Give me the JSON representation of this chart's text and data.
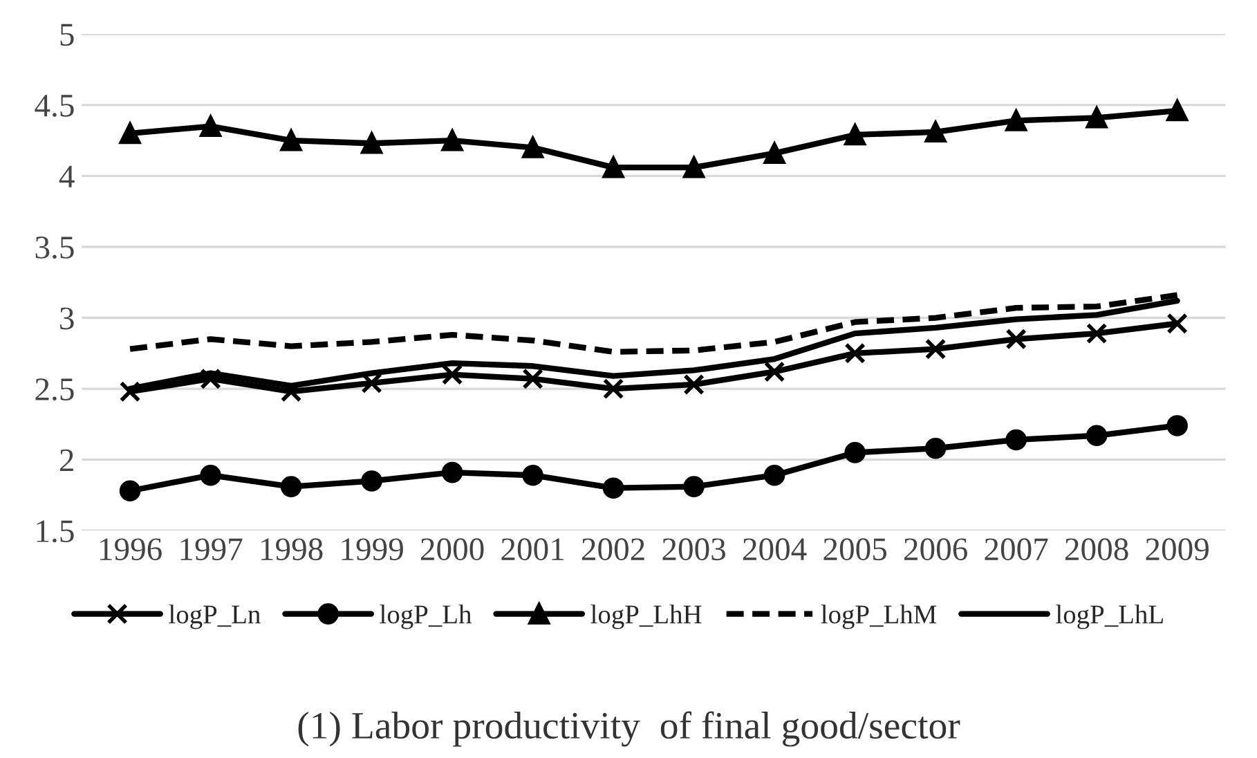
{
  "chart_data": {
    "type": "line",
    "title": "(1) Labor productivity  of final good/sector",
    "categories": [
      "1996",
      "1997",
      "1998",
      "1999",
      "2000",
      "2001",
      "2002",
      "2003",
      "2004",
      "2005",
      "2006",
      "2007",
      "2008",
      "2009"
    ],
    "series": [
      {
        "name": "logP_Ln",
        "color": "#000000",
        "marker": "cross",
        "line_style": "solid",
        "values": [
          2.48,
          2.57,
          2.48,
          2.54,
          2.6,
          2.57,
          2.5,
          2.53,
          2.62,
          2.75,
          2.78,
          2.85,
          2.89,
          2.96
        ]
      },
      {
        "name": "logP_Lh",
        "color": "#000000",
        "marker": "circle",
        "line_style": "solid",
        "values": [
          1.78,
          1.89,
          1.81,
          1.85,
          1.91,
          1.89,
          1.8,
          1.81,
          1.89,
          2.05,
          2.08,
          2.14,
          2.17,
          2.24
        ]
      },
      {
        "name": "logP_LhH",
        "color": "#000000",
        "marker": "triangle",
        "line_style": "solid",
        "values": [
          4.3,
          4.35,
          4.25,
          4.23,
          4.25,
          4.2,
          4.06,
          4.06,
          4.16,
          4.29,
          4.31,
          4.39,
          4.41,
          4.46
        ]
      },
      {
        "name": "logP_LhM",
        "color": "#000000",
        "marker": "none",
        "line_style": "dashed",
        "values": [
          2.78,
          2.85,
          2.8,
          2.83,
          2.88,
          2.84,
          2.76,
          2.77,
          2.83,
          2.97,
          3.0,
          3.07,
          3.08,
          3.16
        ]
      },
      {
        "name": "logP_LhL",
        "color": "#000000",
        "marker": "none",
        "line_style": "solid",
        "values": [
          2.5,
          2.61,
          2.52,
          2.61,
          2.68,
          2.66,
          2.59,
          2.63,
          2.71,
          2.89,
          2.93,
          2.99,
          3.02,
          3.12
        ]
      }
    ],
    "ylim": [
      1.5,
      5
    ],
    "yticks": [
      1.5,
      2,
      2.5,
      3,
      3.5,
      4,
      4.5,
      5
    ],
    "grid": "y",
    "legend": "bottom"
  }
}
